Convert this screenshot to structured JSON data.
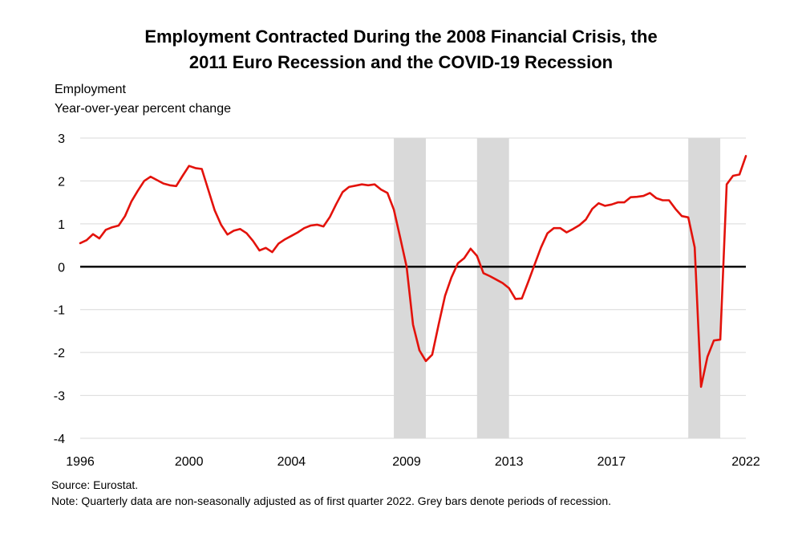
{
  "title_line1": "Employment Contracted During the 2008 Financial Crisis, the",
  "title_line2": "2011 Euro Recession and the COVID-19 Recession",
  "ylabel_line1": "Employment",
  "ylabel_line2": "Year-over-year percent change",
  "source": "Source: Eurostat.",
  "note": "Note: Quarterly data are non-seasonally adjusted as of first quarter 2022. Grey bars denote periods of recession.",
  "colors": {
    "line": "#e3120b",
    "recession": "#d9d9d9",
    "grid": "#d9d9d9",
    "zero": "#000000"
  },
  "chart_data": {
    "type": "line",
    "title": "Employment Contracted During the 2008 Financial Crisis, the 2011 Euro Recession and the COVID-19 Recession",
    "ylabel": "Employment, Year-over-year percent change",
    "xlabel": "",
    "ylim": [
      -4,
      3
    ],
    "xlim": [
      1996,
      2022
    ],
    "yticks": [
      3,
      2,
      1,
      0,
      -1,
      -2,
      -3,
      -4
    ],
    "xticks": [
      "1996",
      "2000",
      "2004",
      "2009",
      "2013",
      "2017",
      "2022"
    ],
    "xtick_values": [
      1996,
      2000.25,
      2004.25,
      2008.75,
      2012.75,
      2016.75,
      2022
    ],
    "grid": true,
    "recessions": [
      [
        2008.25,
        2009.5
      ],
      [
        2011.5,
        2012.75
      ],
      [
        2019.75,
        2021.0
      ]
    ],
    "series": [
      {
        "name": "",
        "x": [
          1996.0,
          1996.25,
          1996.5,
          1996.75,
          1997.0,
          1997.25,
          1997.5,
          1997.75,
          1998.0,
          1998.25,
          1998.5,
          1998.75,
          1999.0,
          1999.25,
          1999.5,
          1999.75,
          2000.0,
          2000.25,
          2000.5,
          2000.75,
          2001.0,
          2001.25,
          2001.5,
          2001.75,
          2002.0,
          2002.25,
          2002.5,
          2002.75,
          2003.0,
          2003.25,
          2003.5,
          2003.75,
          2004.0,
          2004.25,
          2004.5,
          2004.75,
          2005.0,
          2005.25,
          2005.5,
          2005.75,
          2006.0,
          2006.25,
          2006.5,
          2006.75,
          2007.0,
          2007.25,
          2007.5,
          2007.75,
          2008.0,
          2008.25,
          2008.5,
          2008.75,
          2009.0,
          2009.25,
          2009.5,
          2009.75,
          2010.0,
          2010.25,
          2010.5,
          2010.75,
          2011.0,
          2011.25,
          2011.5,
          2011.75,
          2012.0,
          2012.25,
          2012.5,
          2012.75,
          2013.0,
          2013.25,
          2013.5,
          2013.75,
          2014.0,
          2014.25,
          2014.5,
          2014.75,
          2015.0,
          2015.25,
          2015.5,
          2015.75,
          2016.0,
          2016.25,
          2016.5,
          2016.75,
          2017.0,
          2017.25,
          2017.5,
          2017.75,
          2018.0,
          2018.25,
          2018.5,
          2018.75,
          2019.0,
          2019.25,
          2019.5,
          2019.75,
          2020.0,
          2020.25,
          2020.5,
          2020.75,
          2021.0,
          2021.25,
          2021.5,
          2021.75,
          2022.0
        ],
        "values": [
          0.55,
          0.62,
          0.76,
          0.66,
          0.86,
          0.92,
          0.96,
          1.18,
          1.52,
          1.77,
          2.0,
          2.1,
          2.02,
          1.94,
          1.9,
          1.88,
          2.12,
          2.35,
          2.3,
          2.28,
          1.8,
          1.32,
          0.98,
          0.75,
          0.84,
          0.88,
          0.78,
          0.6,
          0.38,
          0.44,
          0.34,
          0.54,
          0.64,
          0.72,
          0.8,
          0.9,
          0.96,
          0.98,
          0.94,
          1.16,
          1.46,
          1.74,
          1.86,
          1.89,
          1.92,
          1.9,
          1.92,
          1.8,
          1.72,
          1.33,
          0.68,
          0.0,
          -1.35,
          -1.95,
          -2.2,
          -2.05,
          -1.35,
          -0.68,
          -0.25,
          0.08,
          0.2,
          0.42,
          0.25,
          -0.15,
          -0.22,
          -0.3,
          -0.38,
          -0.5,
          -0.75,
          -0.74,
          -0.35,
          0.05,
          0.45,
          0.78,
          0.9,
          0.9,
          0.8,
          0.88,
          0.97,
          1.1,
          1.35,
          1.48,
          1.42,
          1.45,
          1.5,
          1.5,
          1.62,
          1.63,
          1.65,
          1.72,
          1.6,
          1.55,
          1.55,
          1.35,
          1.18,
          1.15,
          0.45,
          -2.8,
          -2.1,
          -1.72,
          -1.7,
          1.92,
          2.12,
          2.15,
          2.58
        ]
      }
    ]
  }
}
